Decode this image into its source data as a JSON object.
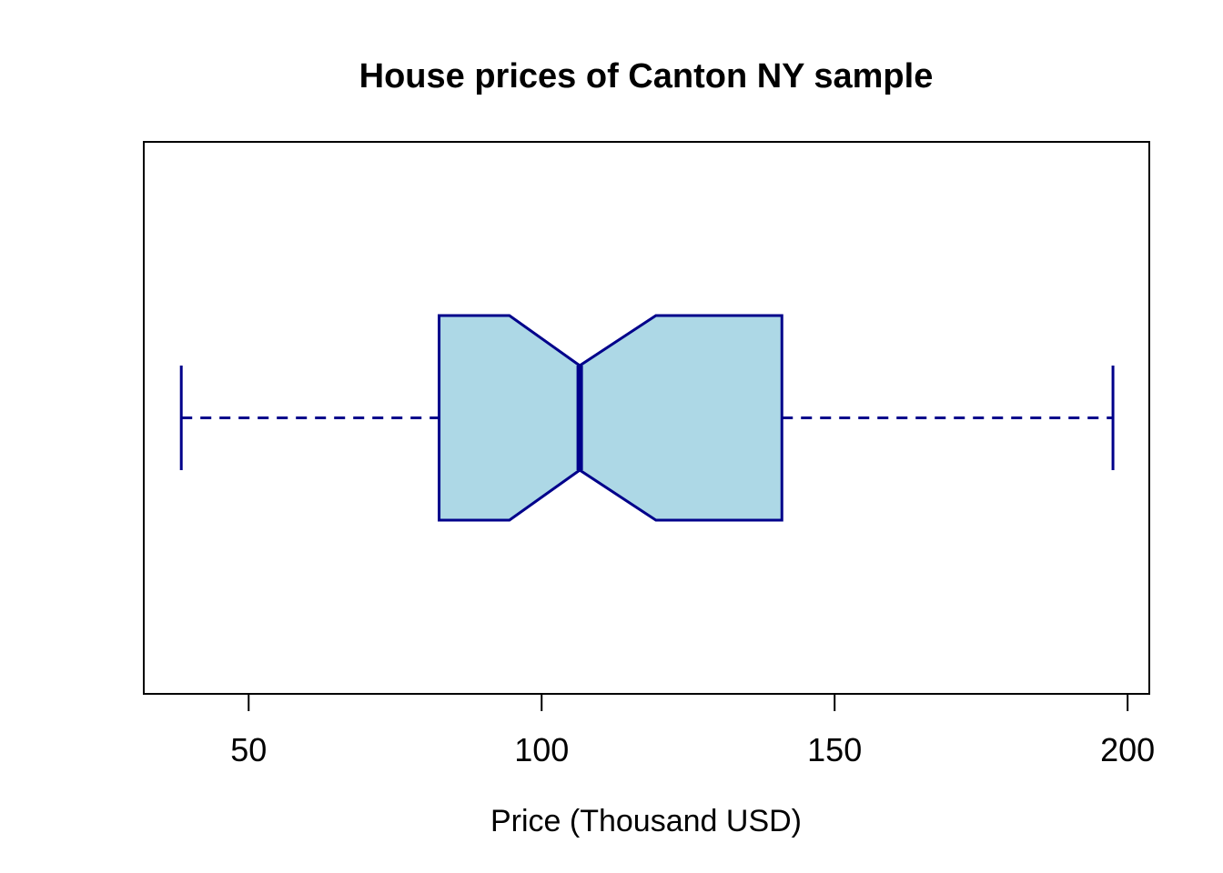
{
  "page": {
    "background": "#FFFFFF"
  },
  "chart_data": {
    "type": "boxplot",
    "orientation": "horizontal",
    "notched": true,
    "title": "House prices of Canton NY sample",
    "xlabel": "Price (Thousand USD)",
    "ylabel": "",
    "x_ticks": [
      50,
      100,
      150,
      200
    ],
    "xlim": [
      32.1,
      203.7
    ],
    "grid": false,
    "whisker_style": "dashed",
    "legend": null,
    "series": [
      {
        "name": "price",
        "min": 38.5,
        "q1": 82.5,
        "median": 106.5,
        "q3": 141,
        "max": 197.5,
        "notch_low": 94.5,
        "notch_high": 119.5,
        "outliers": []
      }
    ],
    "colors": {
      "box_fill": "#ADD8E6",
      "box_border": "#00008B",
      "median": "#00008B",
      "whisker": "#00008B",
      "axis": "#000000",
      "text": "#000000",
      "background": "#FFFFFF"
    }
  }
}
